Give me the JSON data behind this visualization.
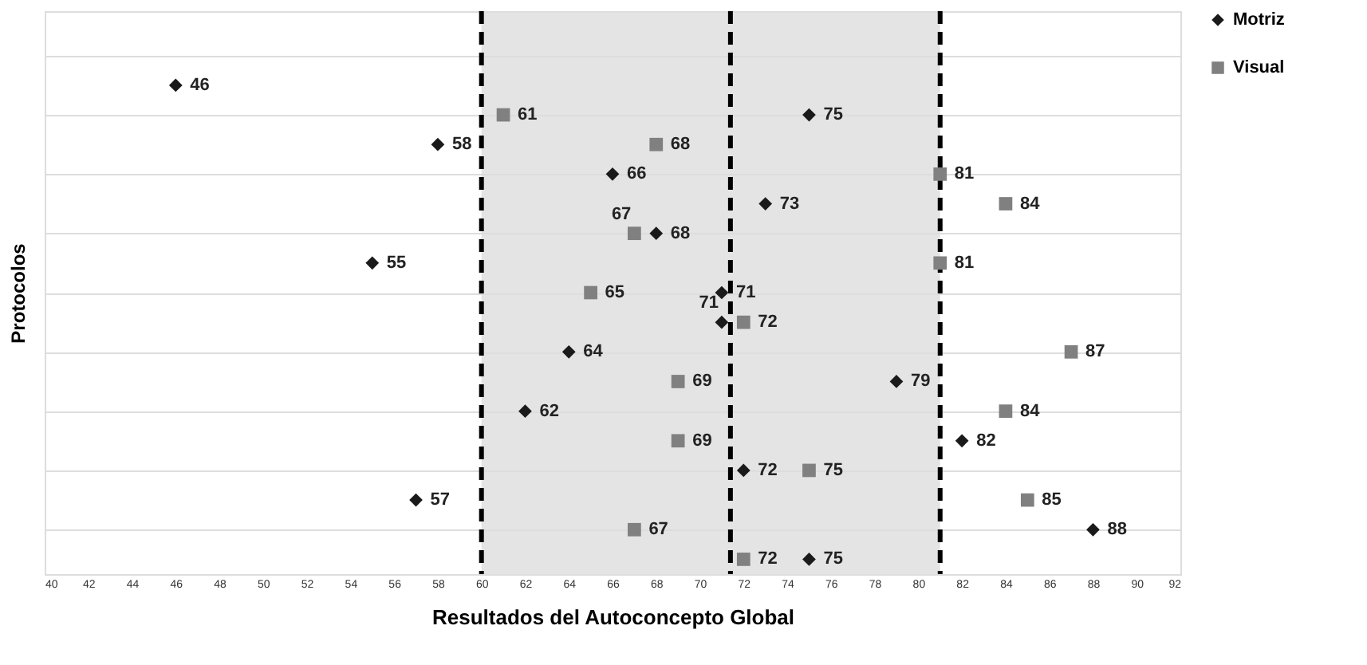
{
  "chart_data": {
    "type": "scatter",
    "orientation": "horizontal",
    "xlabel": "Resultados del Autoconcepto Global",
    "ylabel": "Protocolos",
    "categories": [
      null,
      null,
      null,
      null,
      null,
      null,
      null,
      null,
      null,
      null,
      null,
      null,
      null,
      null,
      null,
      null,
      null,
      null,
      null
    ],
    "xlim": [
      40,
      92
    ],
    "xticks": [
      40,
      42,
      44,
      46,
      48,
      50,
      52,
      54,
      56,
      58,
      60,
      62,
      64,
      66,
      68,
      70,
      72,
      74,
      76,
      78,
      80,
      82,
      84,
      86,
      88,
      90,
      92
    ],
    "tick_labels": "x",
    "grid": "y",
    "legend": "right",
    "data_labels": true,
    "bands": [
      {
        "axis": "x",
        "from": 60,
        "to": 81,
        "color": "#dddddd"
      }
    ],
    "ref_lines": [
      {
        "axis": "x",
        "value": 60,
        "color": "#000000",
        "line_style": "dashed"
      },
      {
        "axis": "x",
        "value": 71.4,
        "color": "#000000",
        "line_style": "dashed"
      },
      {
        "axis": "x",
        "value": 81,
        "color": "#000000",
        "line_style": "dashed"
      }
    ],
    "series": [
      {
        "name": "Motriz",
        "color": "#1a1a1a",
        "marker": "diamond",
        "values": [
          null,
          null,
          46,
          75,
          58,
          66,
          73,
          68,
          55,
          71,
          71,
          64,
          79,
          62,
          82,
          72,
          57,
          88,
          75
        ]
      },
      {
        "name": "Visual",
        "color": "#808080",
        "marker": "square",
        "values": [
          null,
          null,
          null,
          61,
          68,
          81,
          84,
          67,
          81,
          65,
          72,
          87,
          69,
          84,
          69,
          75,
          85,
          67,
          72
        ]
      }
    ]
  }
}
